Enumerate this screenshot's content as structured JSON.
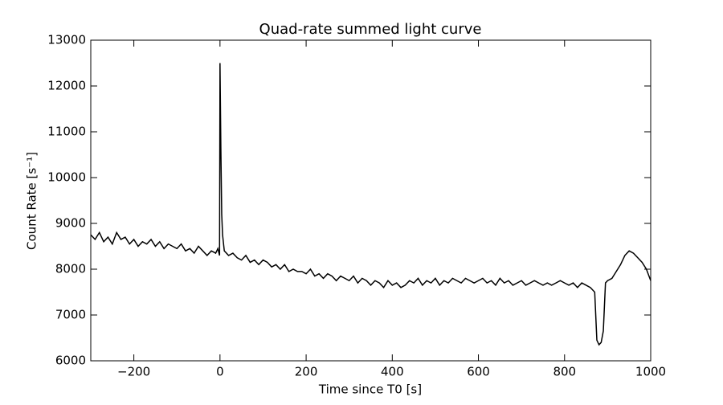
{
  "chart_data": {
    "type": "line",
    "title": "Quad-rate summed light curve",
    "xlabel": "Time since T0 [s]",
    "ylabel": "Count Rate [s⁻¹]",
    "x": [
      -300,
      -290,
      -280,
      -270,
      -260,
      -250,
      -240,
      -230,
      -220,
      -210,
      -200,
      -190,
      -180,
      -170,
      -160,
      -150,
      -140,
      -130,
      -120,
      -110,
      -100,
      -90,
      -80,
      -70,
      -60,
      -50,
      -40,
      -30,
      -20,
      -10,
      -5,
      -1,
      0,
      2,
      4,
      6,
      10,
      20,
      30,
      40,
      50,
      60,
      70,
      80,
      90,
      100,
      110,
      120,
      130,
      140,
      150,
      160,
      170,
      180,
      190,
      200,
      210,
      220,
      230,
      240,
      250,
      260,
      270,
      280,
      290,
      300,
      310,
      320,
      330,
      340,
      350,
      360,
      370,
      380,
      390,
      400,
      410,
      420,
      430,
      440,
      450,
      460,
      470,
      480,
      490,
      500,
      510,
      520,
      530,
      540,
      550,
      560,
      570,
      580,
      590,
      600,
      610,
      620,
      630,
      640,
      650,
      660,
      670,
      680,
      690,
      700,
      710,
      720,
      730,
      740,
      750,
      760,
      770,
      780,
      790,
      800,
      810,
      820,
      830,
      840,
      850,
      860,
      870,
      875,
      880,
      885,
      890,
      895,
      900,
      910,
      920,
      930,
      940,
      950,
      960,
      970,
      980,
      990,
      1000
    ],
    "series": [
      {
        "color": "#000000",
        "values": [
          8750,
          8650,
          8800,
          8600,
          8700,
          8550,
          8800,
          8650,
          8700,
          8550,
          8650,
          8500,
          8600,
          8550,
          8650,
          8500,
          8600,
          8450,
          8550,
          8500,
          8450,
          8550,
          8400,
          8450,
          8350,
          8500,
          8400,
          8300,
          8400,
          8350,
          8450,
          8300,
          12500,
          10650,
          9200,
          8750,
          8400,
          8300,
          8350,
          8250,
          8200,
          8300,
          8150,
          8200,
          8100,
          8200,
          8150,
          8050,
          8100,
          8000,
          8100,
          7950,
          8000,
          7950,
          7950,
          7900,
          8000,
          7850,
          7900,
          7800,
          7900,
          7850,
          7750,
          7850,
          7800,
          7750,
          7850,
          7700,
          7800,
          7750,
          7650,
          7750,
          7700,
          7600,
          7750,
          7650,
          7700,
          7600,
          7650,
          7750,
          7700,
          7800,
          7650,
          7750,
          7700,
          7800,
          7650,
          7750,
          7700,
          7800,
          7750,
          7700,
          7800,
          7750,
          7700,
          7750,
          7800,
          7700,
          7750,
          7650,
          7800,
          7700,
          7750,
          7650,
          7700,
          7750,
          7650,
          7700,
          7750,
          7700,
          7650,
          7700,
          7650,
          7700,
          7750,
          7700,
          7650,
          7700,
          7600,
          7700,
          7650,
          7600,
          7500,
          6450,
          6350,
          6400,
          6650,
          7700,
          7750,
          7800,
          7950,
          8100,
          8300,
          8400,
          8350,
          8250,
          8150,
          8000,
          7750
        ]
      }
    ],
    "xlim": [
      -300,
      1000
    ],
    "xticks": [
      {
        "value": -200,
        "label": "−200"
      },
      0,
      200,
      400,
      600,
      800,
      1000
    ],
    "ylim": [
      6000,
      13000
    ],
    "yticks": [
      6000,
      7000,
      8000,
      9000,
      10000,
      11000,
      12000,
      13000
    ]
  }
}
